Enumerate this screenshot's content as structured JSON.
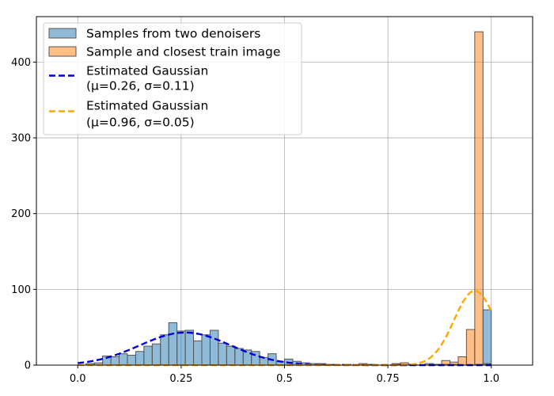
{
  "chart_data": {
    "type": "bar",
    "title": "",
    "xlabel": "",
    "ylabel": "",
    "xlim": [
      -0.1,
      1.1
    ],
    "ylim": [
      0,
      460
    ],
    "grid": true,
    "legend_position": "top-left",
    "x_ticks": [
      {
        "value": 0.0,
        "label": "0.0"
      },
      {
        "value": 0.25,
        "label": "0.25"
      },
      {
        "value": 0.5,
        "label": "0.5"
      },
      {
        "value": 0.75,
        "label": "0.75"
      },
      {
        "value": 1.0,
        "label": "1.0"
      }
    ],
    "y_ticks": [
      {
        "value": 0,
        "label": "0"
      },
      {
        "value": 100,
        "label": "100"
      },
      {
        "value": 200,
        "label": "200"
      },
      {
        "value": 300,
        "label": "300"
      },
      {
        "value": 400,
        "label": "400"
      }
    ],
    "bin_width": 0.02,
    "series": [
      {
        "name": "Samples from two denoisers",
        "kind": "histogram",
        "color": "#1f77b4",
        "bin_starts": [
          0.02,
          0.04,
          0.06,
          0.08,
          0.1,
          0.12,
          0.14,
          0.16,
          0.18,
          0.2,
          0.22,
          0.24,
          0.26,
          0.28,
          0.3,
          0.32,
          0.34,
          0.36,
          0.38,
          0.4,
          0.42,
          0.44,
          0.46,
          0.48,
          0.5,
          0.52,
          0.54,
          0.56,
          0.58,
          0.6,
          0.64,
          0.7,
          0.76,
          0.8,
          0.86,
          0.88,
          0.9,
          0.96,
          0.98
        ],
        "counts": [
          2,
          3,
          12,
          11,
          15,
          13,
          18,
          25,
          28,
          40,
          56,
          45,
          46,
          32,
          40,
          46,
          29,
          25,
          22,
          20,
          18,
          10,
          15,
          5,
          8,
          5,
          3,
          2,
          2,
          1,
          1,
          1,
          1,
          1,
          1,
          1,
          1,
          1,
          73
        ]
      },
      {
        "name": "Sample and closest train image",
        "kind": "histogram",
        "color": "#ff7f0e",
        "bin_starts": [
          0.58,
          0.64,
          0.68,
          0.7,
          0.76,
          0.78,
          0.84,
          0.88,
          0.9,
          0.92,
          0.94,
          0.96,
          0.98
        ],
        "counts": [
          1,
          1,
          2,
          1,
          2,
          3,
          2,
          6,
          4,
          11,
          47,
          440,
          2
        ]
      },
      {
        "name": "Estimated Gaussian\n(μ=0.26, σ=0.11)",
        "kind": "gaussian",
        "color": "#0000dd",
        "mu": 0.26,
        "sigma": 0.11,
        "peak": 43,
        "domain": [
          0.0,
          1.0
        ]
      },
      {
        "name": "Estimated Gaussian\n(μ=0.96, σ=0.05)",
        "kind": "gaussian",
        "color": "#ffa500",
        "mu": 0.96,
        "sigma": 0.05,
        "peak": 98,
        "domain": [
          0.0,
          1.0
        ]
      }
    ],
    "legend": [
      {
        "label": "Samples from two denoisers",
        "marker": "patch",
        "color": "#1f77b4"
      },
      {
        "label": "Sample and closest train image",
        "marker": "patch",
        "color": "#ff7f0e"
      },
      {
        "label": "Estimated Gaussian",
        "label2": "(μ=0.26, σ=0.11)",
        "marker": "dashed",
        "color": "#0000dd"
      },
      {
        "label": "Estimated Gaussian",
        "label2": "(μ=0.96, σ=0.05)",
        "marker": "dashed",
        "color": "#ffa500"
      }
    ]
  }
}
